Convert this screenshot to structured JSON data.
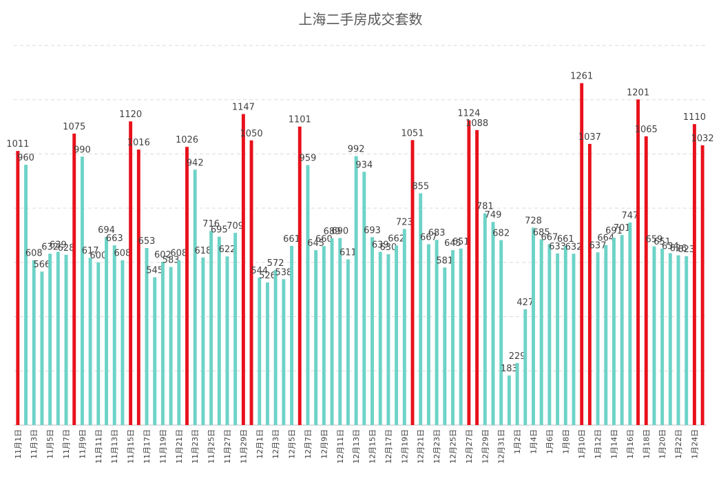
{
  "chart_data": {
    "type": "bar",
    "title": "上海二手房成交套数",
    "xlabel": "",
    "ylabel": "",
    "ylim": [
      0,
      1400
    ],
    "grid": true,
    "legend": "none",
    "colors": {
      "normal": "#6dd3c7",
      "highlight": "#e8111c",
      "grid": "#d9d9d9",
      "text": "#404040"
    },
    "categories": [
      "11月1日",
      "11月2日",
      "11月3日",
      "11月4日",
      "11月5日",
      "11月6日",
      "11月7日",
      "11月8日",
      "11月9日",
      "11月10日",
      "11月11日",
      "11月12日",
      "11月13日",
      "11月14日",
      "11月15日",
      "11月16日",
      "11月17日",
      "11月18日",
      "11月19日",
      "11月20日",
      "11月21日",
      "11月22日",
      "11月23日",
      "11月24日",
      "11月25日",
      "11月26日",
      "11月27日",
      "11月28日",
      "11月29日",
      "11月30日",
      "12月1日",
      "12月2日",
      "12月3日",
      "12月4日",
      "12月5日",
      "12月6日",
      "12月7日",
      "12月8日",
      "12月9日",
      "12月10日",
      "12月11日",
      "12月12日",
      "12月13日",
      "12月14日",
      "12月15日",
      "12月16日",
      "12月17日",
      "12月18日",
      "12月19日",
      "12月20日",
      "12月21日",
      "12月22日",
      "12月23日",
      "12月24日",
      "12月25日",
      "12月26日",
      "12月27日",
      "12月28日",
      "12月29日",
      "12月30日",
      "12月31日",
      "1月1日",
      "1月2日",
      "1月3日",
      "1月4日",
      "1月5日",
      "1月6日",
      "1月7日",
      "1月8日",
      "1月9日",
      "1月10日",
      "1月11日",
      "1月12日",
      "1月13日",
      "1月14日",
      "1月15日",
      "1月16日",
      "1月17日",
      "1月18日",
      "1月19日",
      "1月20日",
      "1月21日",
      "1月22日",
      "1月23日",
      "1月24日",
      "1月25日"
    ],
    "values": [
      1011,
      960,
      608,
      566,
      632,
      639,
      628,
      1075,
      990,
      617,
      600,
      694,
      663,
      608,
      1120,
      1016,
      653,
      545,
      602,
      583,
      608,
      1026,
      942,
      618,
      716,
      695,
      622,
      709,
      1147,
      1050,
      544,
      526,
      572,
      538,
      661,
      1101,
      959,
      645,
      660,
      689,
      690,
      611,
      992,
      934,
      693,
      639,
      630,
      662,
      723,
      1051,
      855,
      667,
      683,
      581,
      645,
      651,
      1124,
      1088,
      781,
      749,
      682,
      183,
      229,
      427,
      728,
      685,
      667,
      633,
      661,
      632,
      1261,
      1037,
      637,
      664,
      691,
      701,
      747,
      1201,
      1065,
      659,
      651,
      634,
      626,
      623,
      1110,
      1032
    ],
    "highlight": [
      true,
      false,
      false,
      false,
      false,
      false,
      false,
      true,
      false,
      false,
      false,
      false,
      false,
      false,
      true,
      true,
      false,
      false,
      false,
      false,
      false,
      true,
      false,
      false,
      false,
      false,
      false,
      false,
      true,
      true,
      false,
      false,
      false,
      false,
      false,
      true,
      false,
      false,
      false,
      false,
      false,
      false,
      false,
      false,
      false,
      false,
      false,
      false,
      false,
      true,
      false,
      false,
      false,
      false,
      false,
      false,
      true,
      true,
      false,
      false,
      false,
      false,
      false,
      false,
      false,
      false,
      false,
      false,
      false,
      false,
      true,
      true,
      false,
      false,
      false,
      false,
      false,
      true,
      true,
      false,
      false,
      false,
      false,
      false,
      true,
      true
    ],
    "tick_labels_shown": [
      "11月1日",
      "11月3日",
      "11月5日",
      "11月7日",
      "11月9日",
      "11月11日",
      "11月13日",
      "11月15日",
      "11月17日",
      "11月19日",
      "11月21日",
      "11月23日",
      "11月25日",
      "11月27日",
      "11月29日",
      "12月1日",
      "12月3日",
      "12月5日",
      "12月7日",
      "12月9日",
      "12月11日",
      "12月13日",
      "12月15日",
      "12月17日",
      "12月19日",
      "12月21日",
      "12月23日",
      "12月25日",
      "12月27日",
      "12月29日",
      "12月31日",
      "1月2日",
      "1月4日",
      "1月6日",
      "1月8日",
      "1月10日",
      "1月12日",
      "1月14日",
      "1月16日",
      "1月18日",
      "1月20日",
      "1月22日",
      "1月24日"
    ]
  }
}
